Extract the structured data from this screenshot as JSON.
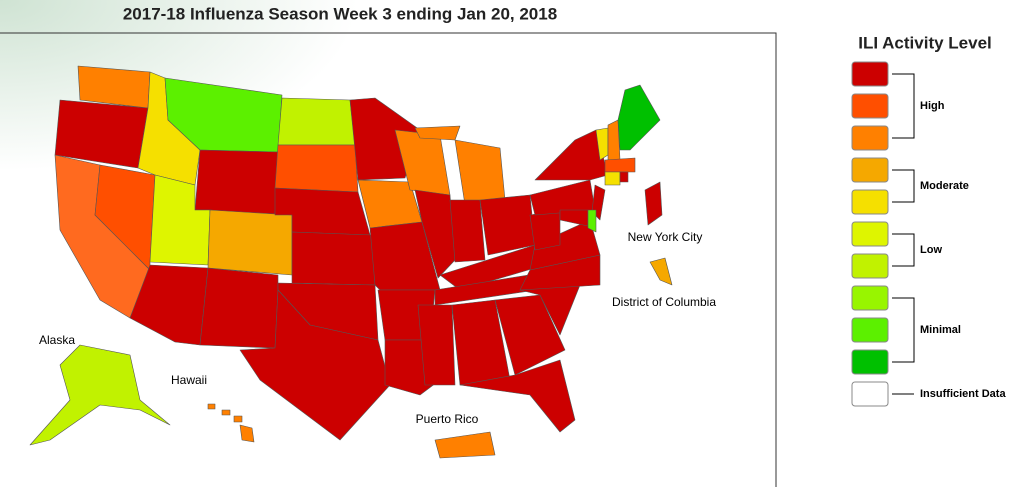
{
  "header": {
    "title": "2017-18 Influenza Season Week 3 ending Jan 20, 2018"
  },
  "map": {
    "labels": [
      "New York City",
      "District of Columbia",
      "Alaska",
      "Hawaii",
      "Puerto Rico"
    ]
  },
  "legend": {
    "title": "ILI Activity Level",
    "groups": [
      {
        "label": "High",
        "colors": [
          "#cc0000",
          "#ff4f00",
          "#ff8000"
        ]
      },
      {
        "label": "Moderate",
        "colors": [
          "#f5a800",
          "#f5e000"
        ]
      },
      {
        "label": "Low",
        "colors": [
          "#def500",
          "#c1f200"
        ]
      },
      {
        "label": "Minimal",
        "colors": [
          "#98f500",
          "#5cf000",
          "#00c000"
        ]
      },
      {
        "label": "Insufficient Data",
        "colors": [
          "#ffffff"
        ]
      }
    ]
  }
}
